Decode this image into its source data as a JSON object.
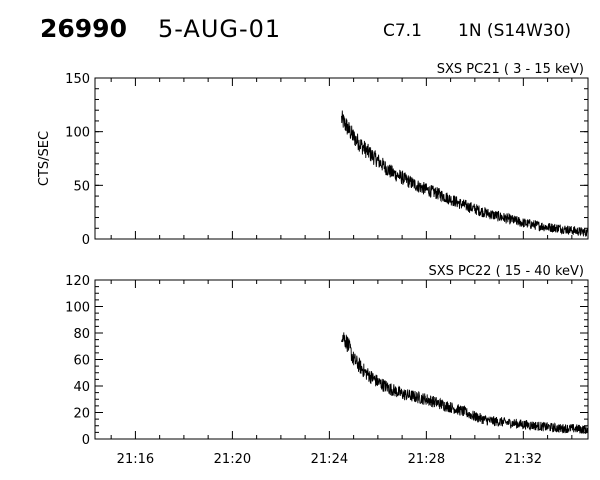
{
  "header": {
    "flare_number": "26990",
    "date": "5-AUG-01",
    "goes_class": "C7.1",
    "optical_class": "1N (S14W30)"
  },
  "chart_data": [
    {
      "type": "line",
      "title": "SXS PC21  (  3 - 15 keV)",
      "xlabel": "",
      "ylabel": "CTS/SEC",
      "xlim": [
        "21:14:20",
        "21:34:40"
      ],
      "ylim": [
        0,
        150
      ],
      "yticks": [
        "0",
        "50",
        "100",
        "150"
      ],
      "xtick_labels": [
        "",
        "",
        "",
        "",
        ""
      ],
      "data_start": "21:24:30",
      "data_end": "21:34:40",
      "series": [
        {
          "name": "",
          "x": [
            "21:24:30",
            "21:25:00",
            "21:25:30",
            "21:26:00",
            "21:26:30",
            "21:27:00",
            "21:27:30",
            "21:28:00",
            "21:28:30",
            "21:29:00",
            "21:29:30",
            "21:30:00",
            "21:30:30",
            "21:31:00",
            "21:31:30",
            "21:32:00",
            "21:32:30",
            "21:33:00",
            "21:33:30",
            "21:34:00",
            "21:34:40"
          ],
          "values": [
            112,
            95,
            83,
            73,
            63,
            57,
            51,
            46,
            42,
            37,
            32,
            28,
            24,
            21,
            18,
            15,
            13,
            11,
            10,
            8,
            6
          ],
          "noise": 9
        }
      ]
    },
    {
      "type": "line",
      "title": "SXS PC22  ( 15 - 40 keV)",
      "xlabel": "",
      "ylabel": "",
      "xlim": [
        "21:14:20",
        "21:34:40"
      ],
      "ylim": [
        0,
        120
      ],
      "yticks": [
        "0",
        "20",
        "40",
        "60",
        "80",
        "100",
        "120"
      ],
      "xtick_labels": [
        "21:16",
        "21:20",
        "21:24",
        "21:28",
        "21:32"
      ],
      "data_start": "21:24:30",
      "data_end": "21:34:40",
      "series": [
        {
          "name": "",
          "x": [
            "21:24:30",
            "21:24:45",
            "21:25:00",
            "21:25:30",
            "21:26:00",
            "21:26:30",
            "21:27:00",
            "21:27:30",
            "21:28:00",
            "21:28:30",
            "21:29:00",
            "21:29:30",
            "21:30:00",
            "21:30:30",
            "21:31:00",
            "21:31:30",
            "21:32:00",
            "21:32:30",
            "21:33:00",
            "21:33:30",
            "21:34:00",
            "21:34:40"
          ],
          "values": [
            80,
            72,
            60,
            50,
            43,
            38,
            34,
            32,
            30,
            27,
            24,
            21,
            17,
            14,
            13,
            12,
            11,
            10,
            9,
            8,
            8,
            7
          ],
          "noise": 7
        }
      ]
    }
  ]
}
